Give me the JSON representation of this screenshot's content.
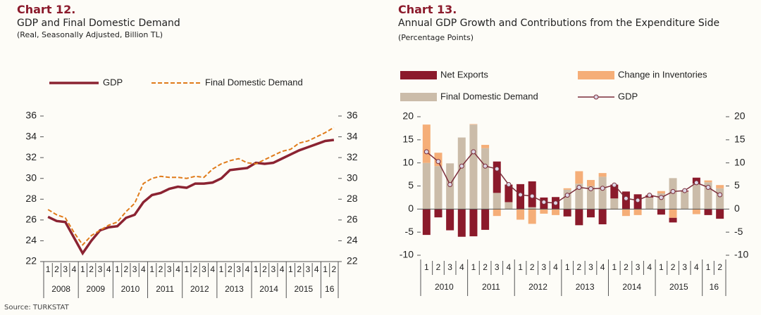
{
  "source": "Source: TURKSTAT",
  "chart_data": [
    {
      "type": "line",
      "label": "Chart 12.",
      "title": "GDP and Final Domestic Demand",
      "subtitle": "(Real, Seasonally Adjusted, Billion TL)",
      "groups": [
        {
          "label": "2008",
          "categories": [
            "1",
            "2",
            "3",
            "4"
          ]
        },
        {
          "label": "2009",
          "categories": [
            "1",
            "2",
            "3",
            "4"
          ]
        },
        {
          "label": "2010",
          "categories": [
            "1",
            "2",
            "3",
            "4"
          ]
        },
        {
          "label": "2011",
          "categories": [
            "1",
            "2",
            "3",
            "4"
          ]
        },
        {
          "label": "2012",
          "categories": [
            "1",
            "2",
            "3",
            "4"
          ]
        },
        {
          "label": "2013",
          "categories": [
            "1",
            "2",
            "3",
            "4"
          ]
        },
        {
          "label": "2014",
          "categories": [
            "1",
            "2",
            "3",
            "4"
          ]
        },
        {
          "label": "2015",
          "categories": [
            "1",
            "2",
            "3",
            "4"
          ]
        },
        {
          "label": "16",
          "categories": [
            "1",
            "2"
          ]
        }
      ],
      "series": [
        {
          "name": "GDP",
          "color": "#8b2332",
          "style": "solid",
          "values": [
            26.3,
            25.9,
            25.8,
            24.3,
            22.8,
            24.0,
            25.0,
            25.3,
            25.4,
            26.2,
            26.5,
            27.7,
            28.4,
            28.6,
            29.0,
            29.2,
            29.1,
            29.5,
            29.5,
            29.6,
            30.0,
            30.8,
            30.9,
            31.0,
            31.5,
            31.4,
            31.5,
            31.9,
            32.3,
            32.7,
            33.0,
            33.3,
            33.6,
            33.7
          ]
        },
        {
          "name": "Final Domestic Demand",
          "color": "#e07b1a",
          "style": "dashed",
          "values": [
            27.0,
            26.5,
            26.2,
            24.8,
            23.6,
            24.5,
            25.0,
            25.5,
            25.8,
            26.8,
            27.6,
            29.5,
            30.0,
            30.2,
            30.1,
            30.1,
            30.0,
            30.2,
            30.1,
            30.9,
            31.4,
            31.7,
            31.9,
            31.5,
            31.4,
            31.8,
            32.2,
            32.6,
            32.8,
            33.4,
            33.6,
            34.0,
            34.4,
            34.9
          ]
        }
      ],
      "ylim": [
        22,
        36
      ],
      "yticks": [
        22,
        24,
        26,
        28,
        30,
        32,
        34,
        36
      ],
      "y2lim": [
        22,
        36
      ],
      "y2ticks": [
        22,
        24,
        26,
        28,
        30,
        32,
        34,
        36
      ]
    },
    {
      "type": "bar",
      "label": "Chart 13.",
      "title": "Annual GDP Growth and Contributions from the Expenditure Side",
      "subtitle": "(Percentage Points)",
      "groups": [
        {
          "label": "2010",
          "categories": [
            "1",
            "2",
            "3",
            "4"
          ]
        },
        {
          "label": "2011",
          "categories": [
            "1",
            "2",
            "3",
            "4"
          ]
        },
        {
          "label": "2012",
          "categories": [
            "1",
            "2",
            "3",
            "4"
          ]
        },
        {
          "label": "2013",
          "categories": [
            "1",
            "2",
            "3",
            "4"
          ]
        },
        {
          "label": "2014",
          "categories": [
            "1",
            "2",
            "3",
            "4"
          ]
        },
        {
          "label": "2015",
          "categories": [
            "1",
            "2",
            "3",
            "4"
          ]
        },
        {
          "label": "16",
          "categories": [
            "1",
            "2"
          ]
        }
      ],
      "series": [
        {
          "name": "Net Exports",
          "color": "#8b1a2b",
          "type": "bar",
          "values": [
            -5.6,
            -1.8,
            -4.6,
            -6.0,
            -5.9,
            -4.5,
            6.8,
            3.8,
            5.4,
            5.6,
            2.5,
            2.6,
            -1.6,
            -3.5,
            -1.8,
            -3.3,
            3.0,
            3.8,
            3.2,
            0.5,
            -1.2,
            -1.0,
            0.2,
            1.3,
            -1.3,
            -2.1
          ]
        },
        {
          "name": "Change in Inventories",
          "color": "#f5ae78",
          "type": "bar",
          "values": [
            8.3,
            2.9,
            0.0,
            0.0,
            0.1,
            0.7,
            -1.5,
            0.0,
            -2.3,
            -3.2,
            -1.0,
            -1.3,
            0.3,
            2.7,
            1.3,
            0.8,
            -0.1,
            -1.5,
            -1.3,
            0.0,
            0.5,
            -1.9,
            0.0,
            -1.1,
            0.4,
            0.7
          ]
        },
        {
          "name": "Final Domestic Demand",
          "color": "#cbbca9",
          "type": "bar",
          "values": [
            10.0,
            9.3,
            9.9,
            15.5,
            18.3,
            13.2,
            3.5,
            1.5,
            0.0,
            0.4,
            0.0,
            0.0,
            4.2,
            5.5,
            5.0,
            7.0,
            2.3,
            0.0,
            0.0,
            2.5,
            3.4,
            6.7,
            3.8,
            5.5,
            5.8,
            4.5
          ]
        },
        {
          "name": "GDP",
          "color": "#7b2d3a",
          "type": "line",
          "values": [
            12.4,
            10.3,
            5.3,
            9.3,
            12.4,
            9.3,
            8.7,
            5.3,
            3.1,
            2.8,
            1.5,
            1.3,
            3.0,
            4.7,
            4.4,
            4.5,
            5.2,
            2.3,
            1.9,
            3.0,
            2.5,
            3.8,
            4.0,
            5.7,
            4.7,
            3.1
          ]
        }
      ],
      "ylim": [
        -10,
        20
      ],
      "yticks": [
        -10,
        -5,
        0,
        5,
        10,
        15,
        20
      ],
      "y2lim": [
        -10,
        20
      ],
      "y2ticks": [
        -10,
        -5,
        0,
        5,
        10,
        15,
        20
      ]
    }
  ]
}
